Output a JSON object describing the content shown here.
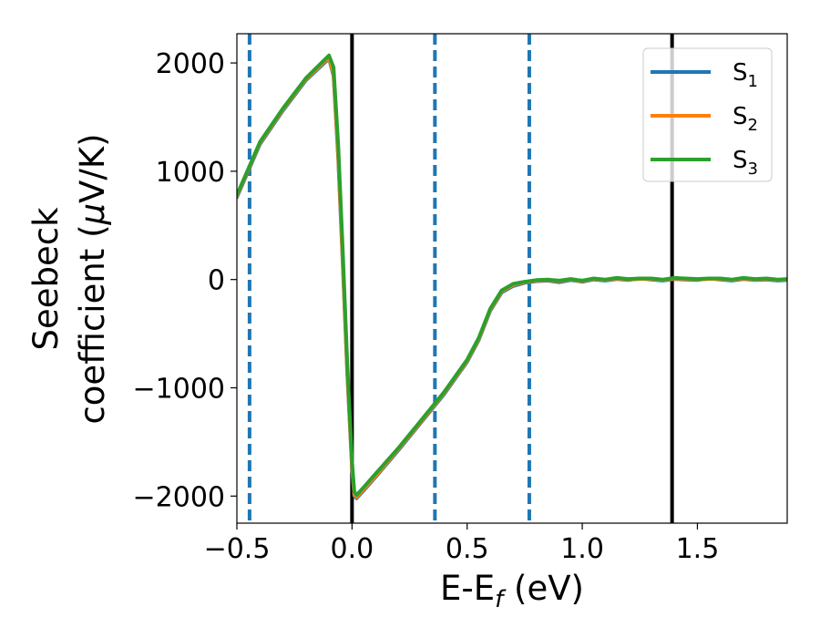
{
  "chart_data": {
    "type": "line",
    "xlabel": "E-E$_f$ (eV)",
    "ylabel_line1": "Seebeck",
    "ylabel_line2": "coefficient  ($\\mu$V/K)",
    "xlim": [
      -0.5,
      1.89
    ],
    "ylim": [
      -2250,
      2270
    ],
    "x_ticks": [
      -0.5,
      0.0,
      0.5,
      1.0,
      1.5
    ],
    "x_tick_labels": [
      "−0.5",
      "0.0",
      "0.5",
      "1.0",
      "1.5"
    ],
    "y_ticks": [
      -2000,
      -1000,
      0,
      1000,
      2000
    ],
    "y_tick_labels": [
      "−2000",
      "−1000",
      "0",
      "1000",
      "2000"
    ],
    "grid": false,
    "legend_position": "top-right",
    "series": [
      {
        "name": "S$_1$",
        "color": "#1f77b4",
        "x": [
          -0.5,
          -0.4,
          -0.3,
          -0.2,
          -0.1,
          -0.08,
          -0.06,
          -0.04,
          -0.02,
          0.0,
          0.01,
          0.02,
          0.05,
          0.1,
          0.2,
          0.3,
          0.4,
          0.5,
          0.55,
          0.6,
          0.65,
          0.7,
          0.75,
          0.8,
          0.85,
          0.9,
          0.95,
          1.0,
          1.05,
          1.1,
          1.15,
          1.2,
          1.25,
          1.3,
          1.35,
          1.4,
          1.45,
          1.5,
          1.55,
          1.6,
          1.65,
          1.7,
          1.75,
          1.8,
          1.85,
          1.89
        ],
        "y": [
          760,
          1250,
          1560,
          1840,
          2040,
          1880,
          1120,
          120,
          -900,
          -1750,
          -2000,
          -2020,
          -1950,
          -1830,
          -1580,
          -1320,
          -1060,
          -760,
          -560,
          -290,
          -120,
          -60,
          -30,
          -15,
          -10,
          -25,
          -5,
          -20,
          0,
          -10,
          5,
          -5,
          10,
          0,
          -10,
          5,
          0,
          -5,
          10,
          0,
          -10,
          5,
          -5,
          0,
          -10,
          -5
        ]
      },
      {
        "name": "S$_2$",
        "color": "#ff7f0e",
        "x": [
          -0.5,
          -0.4,
          -0.3,
          -0.2,
          -0.1,
          -0.08,
          -0.06,
          -0.04,
          -0.02,
          0.0,
          0.01,
          0.02,
          0.05,
          0.1,
          0.2,
          0.3,
          0.4,
          0.5,
          0.55,
          0.6,
          0.65,
          0.7,
          0.75,
          0.8,
          0.85,
          0.9,
          0.95,
          1.0,
          1.05,
          1.1,
          1.15,
          1.2,
          1.25,
          1.3,
          1.35,
          1.4,
          1.45,
          1.5,
          1.55,
          1.6,
          1.65,
          1.7,
          1.75,
          1.8,
          1.85,
          1.89
        ],
        "y": [
          770,
          1260,
          1570,
          1850,
          2050,
          1900,
          1150,
          150,
          -880,
          -1730,
          -1990,
          -2010,
          -1940,
          -1820,
          -1570,
          -1310,
          -1050,
          -750,
          -550,
          -280,
          -110,
          -50,
          -25,
          -10,
          -5,
          -15,
          0,
          -15,
          5,
          -5,
          10,
          0,
          5,
          5,
          -5,
          10,
          5,
          0,
          5,
          5,
          -5,
          10,
          0,
          5,
          -5,
          0
        ]
      },
      {
        "name": "S$_3$",
        "color": "#2ca02c",
        "x": [
          -0.5,
          -0.4,
          -0.3,
          -0.2,
          -0.1,
          -0.08,
          -0.06,
          -0.04,
          -0.02,
          0.0,
          0.01,
          0.02,
          0.05,
          0.1,
          0.2,
          0.3,
          0.4,
          0.5,
          0.55,
          0.6,
          0.65,
          0.7,
          0.75,
          0.8,
          0.85,
          0.9,
          0.95,
          1.0,
          1.05,
          1.1,
          1.15,
          1.2,
          1.25,
          1.3,
          1.35,
          1.4,
          1.45,
          1.5,
          1.55,
          1.6,
          1.65,
          1.7,
          1.75,
          1.8,
          1.85,
          1.89
        ],
        "y": [
          780,
          1270,
          1580,
          1860,
          2070,
          1960,
          1250,
          250,
          -800,
          -1680,
          -1960,
          -1990,
          -1920,
          -1800,
          -1560,
          -1300,
          -1040,
          -740,
          -540,
          -270,
          -100,
          -40,
          -20,
          -5,
          0,
          -10,
          5,
          -10,
          10,
          0,
          15,
          5,
          10,
          10,
          0,
          15,
          10,
          5,
          10,
          10,
          0,
          15,
          5,
          10,
          0,
          5
        ]
      }
    ],
    "vlines": [
      {
        "x": -0.445,
        "color": "#1f77b4",
        "style": "dashed"
      },
      {
        "x": 0.0,
        "color": "#000000",
        "style": "solid"
      },
      {
        "x": 0.36,
        "color": "#1f77b4",
        "style": "dashed"
      },
      {
        "x": 0.77,
        "color": "#1f77b4",
        "style": "dashed"
      },
      {
        "x": 1.39,
        "color": "#000000",
        "style": "solid"
      }
    ]
  }
}
